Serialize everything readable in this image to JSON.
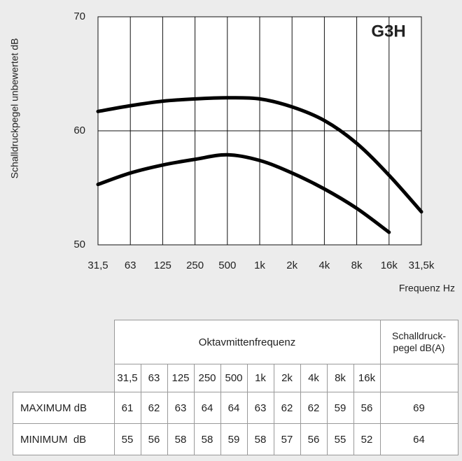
{
  "chart_data": {
    "type": "line",
    "annotation": "G3H",
    "y_label": "Schalldruckpegel unbewertet dB",
    "x_label": "Frequenz Hz",
    "categories": [
      "31,5",
      "63",
      "125",
      "250",
      "500",
      "1k",
      "2k",
      "4k",
      "8k",
      "16k",
      "31,5k"
    ],
    "series": [
      {
        "color": "#000000",
        "values": [
          61.7,
          62.2,
          62.6,
          62.8,
          62.9,
          62.8,
          62.1,
          60.9,
          58.9,
          56.1,
          52.9
        ]
      },
      {
        "color": "#000000",
        "values": [
          55.3,
          56.3,
          57.0,
          57.5,
          57.9,
          57.4,
          56.3,
          54.9,
          53.2,
          51.1,
          null
        ]
      }
    ],
    "ylim": [
      50,
      70
    ],
    "yticks": [
      50,
      60,
      70
    ],
    "grid": true
  },
  "table": {
    "group_header": "Oktavmittenfrequenz",
    "total_header": "Schalldruck-\npegel dB(A)",
    "columns": [
      "31,5",
      "63",
      "125",
      "250",
      "500",
      "1k",
      "2k",
      "4k",
      "8k",
      "16k"
    ],
    "rows": [
      {
        "label": "MAXIMUM dB",
        "values": [
          "61",
          "62",
          "63",
          "64",
          "64",
          "63",
          "62",
          "62",
          "59",
          "56"
        ],
        "total": "69"
      },
      {
        "label": "MINIMUM  dB",
        "values": [
          "55",
          "56",
          "58",
          "58",
          "59",
          "58",
          "57",
          "56",
          "55",
          "52"
        ],
        "total": "64"
      }
    ]
  }
}
